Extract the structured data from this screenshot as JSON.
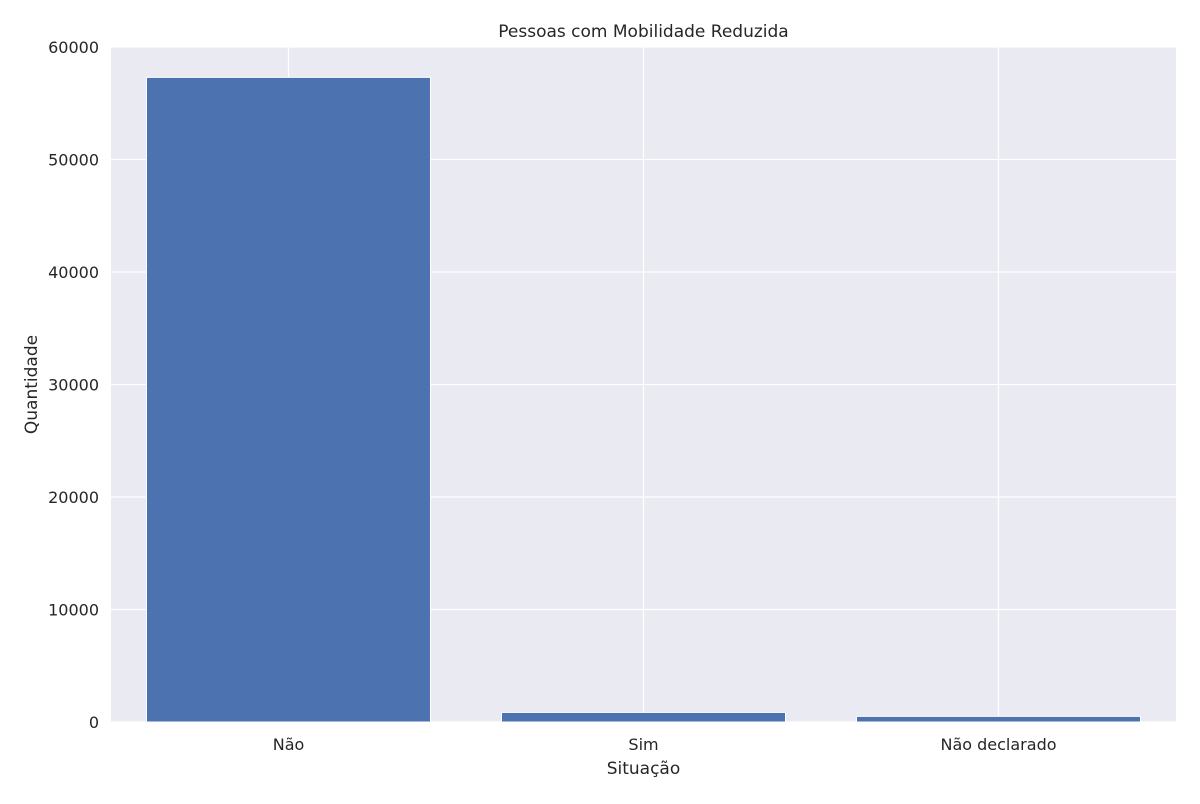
{
  "chart_data": {
    "type": "bar",
    "title": "Pessoas com Mobilidade Reduzida",
    "xlabel": "Situação",
    "ylabel": "Quantidade",
    "categories": [
      "Não",
      "Sim",
      "Não declarado"
    ],
    "values": [
      57300,
      850,
      500
    ],
    "ylim": [
      0,
      60000
    ],
    "yticks": [
      0,
      10000,
      20000,
      30000,
      40000,
      50000,
      60000
    ],
    "grid": true,
    "legend": "none",
    "style": {
      "bar_color": "#4c72b0",
      "plot_background": "#eaeaf2",
      "grid_color": "#ffffff"
    }
  }
}
